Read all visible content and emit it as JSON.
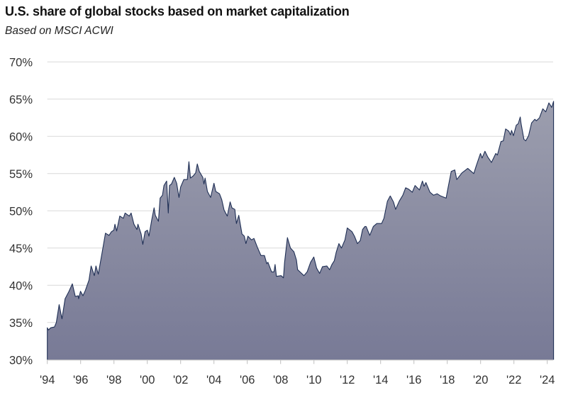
{
  "chart_data": {
    "type": "area",
    "title": "U.S. share of global stocks based on market capitalization",
    "subtitle": "Based on MSCI ACWI",
    "xlabel": "",
    "ylabel": "",
    "ylim": [
      30,
      70
    ],
    "xlim": [
      1994,
      2024.4
    ],
    "yticks": [
      "30%",
      "35%",
      "40%",
      "45%",
      "50%",
      "55%",
      "60%",
      "65%",
      "70%"
    ],
    "ytick_values": [
      30,
      35,
      40,
      45,
      50,
      55,
      60,
      65,
      70
    ],
    "xticks": [
      "'94",
      "'96",
      "'98",
      "'00",
      "'02",
      "'04",
      "'06",
      "'08",
      "'10",
      "'12",
      "'14",
      "'16",
      "'18",
      "'20",
      "'22",
      "'24"
    ],
    "xtick_values": [
      1994,
      1996,
      1998,
      2000,
      2002,
      2004,
      2006,
      2008,
      2010,
      2012,
      2014,
      2016,
      2018,
      2020,
      2022,
      2024
    ],
    "grid": "horizontal",
    "colors": {
      "line": "#1f2f55",
      "fill_top": "#9c9eae",
      "fill_bottom": "#787a96",
      "grid": "#d9d9d9",
      "axis": "#bfbfbf"
    },
    "series": [
      {
        "points": [
          [
            1994.0,
            34.3
          ],
          [
            1994.07,
            34.0
          ],
          [
            1994.21,
            34.3
          ],
          [
            1994.43,
            34.4
          ],
          [
            1994.54,
            35.0
          ],
          [
            1994.71,
            37.4
          ],
          [
            1994.88,
            35.5
          ],
          [
            1995.07,
            38.2
          ],
          [
            1995.28,
            39.1
          ],
          [
            1995.5,
            40.2
          ],
          [
            1995.68,
            38.5
          ],
          [
            1995.85,
            38.6
          ],
          [
            1995.88,
            38.2
          ],
          [
            1995.99,
            39.2
          ],
          [
            1996.14,
            38.6
          ],
          [
            1996.28,
            39.3
          ],
          [
            1996.5,
            40.7
          ],
          [
            1996.63,
            42.6
          ],
          [
            1996.82,
            41.3
          ],
          [
            1996.92,
            42.6
          ],
          [
            1997.06,
            41.5
          ],
          [
            1997.28,
            44.3
          ],
          [
            1997.49,
            47.0
          ],
          [
            1997.7,
            46.7
          ],
          [
            1997.85,
            47.2
          ],
          [
            1997.99,
            47.4
          ],
          [
            1998.06,
            48.2
          ],
          [
            1998.16,
            47.3
          ],
          [
            1998.35,
            49.3
          ],
          [
            1998.56,
            49.0
          ],
          [
            1998.67,
            49.7
          ],
          [
            1998.92,
            49.3
          ],
          [
            1999.03,
            49.7
          ],
          [
            1999.2,
            48.2
          ],
          [
            1999.38,
            47.5
          ],
          [
            1999.44,
            48.2
          ],
          [
            1999.63,
            46.9
          ],
          [
            1999.73,
            45.5
          ],
          [
            1999.87,
            47.2
          ],
          [
            2000.01,
            47.4
          ],
          [
            2000.1,
            46.6
          ],
          [
            2000.27,
            48.8
          ],
          [
            2000.41,
            50.4
          ],
          [
            2000.48,
            49.4
          ],
          [
            2000.67,
            48.6
          ],
          [
            2000.77,
            51.7
          ],
          [
            2000.91,
            52.1
          ],
          [
            2001.0,
            53.4
          ],
          [
            2001.16,
            54.0
          ],
          [
            2001.26,
            49.7
          ],
          [
            2001.33,
            53.4
          ],
          [
            2001.45,
            53.6
          ],
          [
            2001.62,
            54.5
          ],
          [
            2001.76,
            53.7
          ],
          [
            2001.9,
            51.8
          ],
          [
            2002.0,
            53.2
          ],
          [
            2002.19,
            54.2
          ],
          [
            2002.4,
            54.2
          ],
          [
            2002.5,
            56.6
          ],
          [
            2002.59,
            54.4
          ],
          [
            2002.76,
            54.7
          ],
          [
            2002.9,
            55.1
          ],
          [
            2003.0,
            56.3
          ],
          [
            2003.12,
            55.3
          ],
          [
            2003.33,
            54.5
          ],
          [
            2003.4,
            53.6
          ],
          [
            2003.47,
            54.4
          ],
          [
            2003.61,
            52.6
          ],
          [
            2003.8,
            51.8
          ],
          [
            2004.0,
            53.7
          ],
          [
            2004.11,
            52.6
          ],
          [
            2004.33,
            52.3
          ],
          [
            2004.47,
            51.5
          ],
          [
            2004.61,
            50.1
          ],
          [
            2004.8,
            49.3
          ],
          [
            2004.97,
            51.2
          ],
          [
            2005.08,
            50.4
          ],
          [
            2005.25,
            50.2
          ],
          [
            2005.35,
            48.3
          ],
          [
            2005.49,
            49.4
          ],
          [
            2005.68,
            46.9
          ],
          [
            2005.82,
            46.6
          ],
          [
            2005.92,
            45.6
          ],
          [
            2006.04,
            46.6
          ],
          [
            2006.25,
            46.1
          ],
          [
            2006.4,
            46.3
          ],
          [
            2006.61,
            45.1
          ],
          [
            2006.82,
            44.0
          ],
          [
            2007.03,
            44.0
          ],
          [
            2007.17,
            42.9
          ],
          [
            2007.24,
            43.1
          ],
          [
            2007.46,
            41.8
          ],
          [
            2007.6,
            41.8
          ],
          [
            2007.67,
            42.8
          ],
          [
            2007.75,
            41.2
          ],
          [
            2008.03,
            41.3
          ],
          [
            2008.17,
            41.0
          ],
          [
            2008.24,
            43.1
          ],
          [
            2008.41,
            46.4
          ],
          [
            2008.59,
            45.0
          ],
          [
            2008.8,
            44.5
          ],
          [
            2008.95,
            43.4
          ],
          [
            2009.02,
            42.1
          ],
          [
            2009.16,
            41.8
          ],
          [
            2009.4,
            41.3
          ],
          [
            2009.59,
            41.8
          ],
          [
            2009.8,
            43.1
          ],
          [
            2009.99,
            43.8
          ],
          [
            2010.16,
            42.3
          ],
          [
            2010.34,
            41.6
          ],
          [
            2010.51,
            42.5
          ],
          [
            2010.77,
            42.6
          ],
          [
            2010.94,
            42.1
          ],
          [
            2011.08,
            42.8
          ],
          [
            2011.22,
            43.3
          ],
          [
            2011.33,
            44.4
          ],
          [
            2011.5,
            45.6
          ],
          [
            2011.65,
            45.0
          ],
          [
            2011.86,
            46.1
          ],
          [
            2012.0,
            47.7
          ],
          [
            2012.28,
            47.2
          ],
          [
            2012.43,
            46.6
          ],
          [
            2012.61,
            45.6
          ],
          [
            2012.78,
            46.0
          ],
          [
            2012.92,
            47.5
          ],
          [
            2013.06,
            47.9
          ],
          [
            2013.13,
            47.9
          ],
          [
            2013.35,
            46.7
          ],
          [
            2013.56,
            47.9
          ],
          [
            2013.77,
            48.3
          ],
          [
            2014.06,
            48.3
          ],
          [
            2014.2,
            49.0
          ],
          [
            2014.41,
            51.3
          ],
          [
            2014.58,
            52.0
          ],
          [
            2014.77,
            51.2
          ],
          [
            2014.9,
            50.2
          ],
          [
            2015.12,
            51.3
          ],
          [
            2015.33,
            52.1
          ],
          [
            2015.5,
            53.1
          ],
          [
            2015.69,
            52.9
          ],
          [
            2015.9,
            52.5
          ],
          [
            2016.07,
            53.4
          ],
          [
            2016.33,
            52.8
          ],
          [
            2016.51,
            54.0
          ],
          [
            2016.61,
            53.3
          ],
          [
            2016.72,
            53.8
          ],
          [
            2016.96,
            52.5
          ],
          [
            2017.18,
            52.1
          ],
          [
            2017.39,
            52.3
          ],
          [
            2017.6,
            52.0
          ],
          [
            2017.93,
            51.7
          ],
          [
            2018.03,
            52.9
          ],
          [
            2018.24,
            55.3
          ],
          [
            2018.45,
            55.5
          ],
          [
            2018.57,
            54.2
          ],
          [
            2018.88,
            55.1
          ],
          [
            2019.23,
            55.7
          ],
          [
            2019.59,
            55.0
          ],
          [
            2019.73,
            56.0
          ],
          [
            2019.99,
            57.7
          ],
          [
            2020.09,
            57.1
          ],
          [
            2020.26,
            58.0
          ],
          [
            2020.44,
            57.2
          ],
          [
            2020.65,
            56.5
          ],
          [
            2020.91,
            57.7
          ],
          [
            2021.01,
            57.5
          ],
          [
            2021.22,
            59.3
          ],
          [
            2021.36,
            59.4
          ],
          [
            2021.5,
            61.0
          ],
          [
            2021.69,
            60.7
          ],
          [
            2021.79,
            60.2
          ],
          [
            2021.86,
            60.8
          ],
          [
            2021.97,
            60.1
          ],
          [
            2022.14,
            61.5
          ],
          [
            2022.26,
            61.7
          ],
          [
            2022.38,
            62.6
          ],
          [
            2022.43,
            61.7
          ],
          [
            2022.6,
            59.6
          ],
          [
            2022.71,
            59.4
          ],
          [
            2022.88,
            60.1
          ],
          [
            2023.06,
            61.8
          ],
          [
            2023.25,
            62.3
          ],
          [
            2023.35,
            62.1
          ],
          [
            2023.53,
            62.5
          ],
          [
            2023.73,
            63.7
          ],
          [
            2023.91,
            63.3
          ],
          [
            2024.1,
            64.5
          ],
          [
            2024.27,
            63.9
          ],
          [
            2024.38,
            64.7
          ]
        ]
      }
    ]
  }
}
